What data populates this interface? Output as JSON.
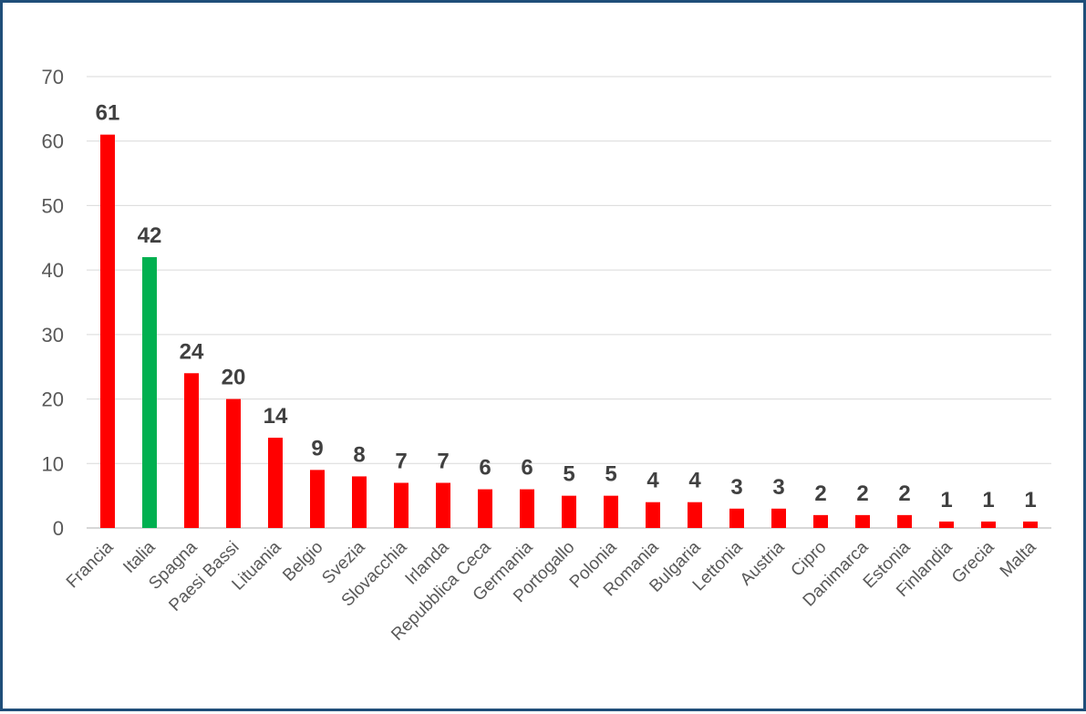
{
  "chart_data": {
    "type": "bar",
    "title": "",
    "xlabel": "",
    "ylabel": "",
    "ylim": [
      0,
      70
    ],
    "yticks": [
      0,
      10,
      20,
      30,
      40,
      50,
      60,
      70
    ],
    "grid": true,
    "legend": "none",
    "categories": [
      "Francia",
      "Italia",
      "Spagna",
      "Paesi Bassi",
      "Lituania",
      "Belgio",
      "Svezia",
      "Slovacchia",
      "Irlanda",
      "Repubblica Ceca",
      "Germania",
      "Portogallo",
      "Polonia",
      "Romania",
      "Bulgaria",
      "Lettonia",
      "Austria",
      "Cipro",
      "Danimarca",
      "Estonia",
      "Finlandia",
      "Grecia",
      "Malta"
    ],
    "values": [
      61,
      42,
      24,
      20,
      14,
      9,
      8,
      7,
      7,
      6,
      6,
      5,
      5,
      4,
      4,
      3,
      3,
      2,
      2,
      2,
      1,
      1,
      1
    ],
    "colors": {
      "default": "#ff0000",
      "highlight": "#00b050",
      "highlight_category": "Italia"
    }
  }
}
